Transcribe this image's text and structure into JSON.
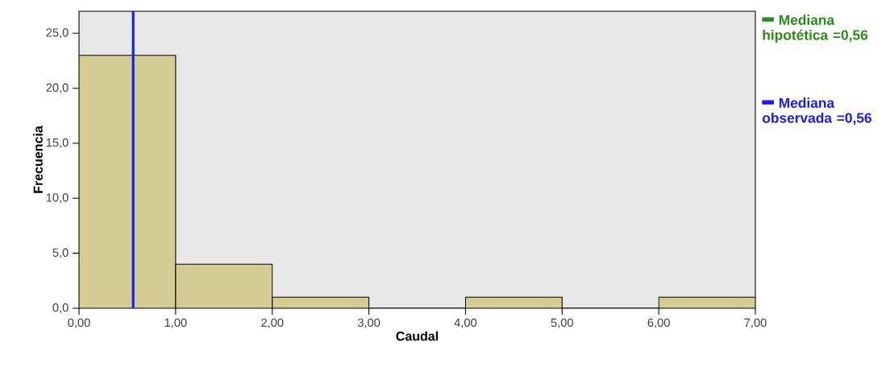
{
  "chart_data": {
    "type": "histogram",
    "xlabel": "Caudal",
    "ylabel": "Frecuencia",
    "bins": [
      0,
      1,
      2,
      3,
      4,
      5,
      6,
      7
    ],
    "values": [
      23,
      4,
      1,
      0,
      1,
      0,
      1
    ],
    "color": "#d3cd95",
    "xlim": [
      0,
      7
    ],
    "ylim": [
      0,
      27
    ],
    "xticks": [
      {
        "value": 0,
        "label": "0,00"
      },
      {
        "value": 1,
        "label": "1,00"
      },
      {
        "value": 2,
        "label": "2,00"
      },
      {
        "value": 3,
        "label": "3,00"
      },
      {
        "value": 4,
        "label": "4,00"
      },
      {
        "value": 5,
        "label": "5,00"
      },
      {
        "value": 6,
        "label": "6,00"
      },
      {
        "value": 7,
        "label": "7,00"
      }
    ],
    "yticks": [
      {
        "value": 0,
        "label": "0,0"
      },
      {
        "value": 5,
        "label": "5,0"
      },
      {
        "value": 10,
        "label": "10,0"
      },
      {
        "value": 15,
        "label": "15,0"
      },
      {
        "value": 20,
        "label": "20,0"
      },
      {
        "value": 25,
        "label": "25,0"
      }
    ],
    "ref_lines": [
      {
        "axis": "x",
        "value": 0.56,
        "label": "Mediana hipotética =0,56",
        "color": "#2a8a1a"
      },
      {
        "axis": "x",
        "value": 0.56,
        "label": "Mediana observada =0,56",
        "color": "#1a1aff"
      }
    ],
    "legend": "right",
    "grid": false
  }
}
